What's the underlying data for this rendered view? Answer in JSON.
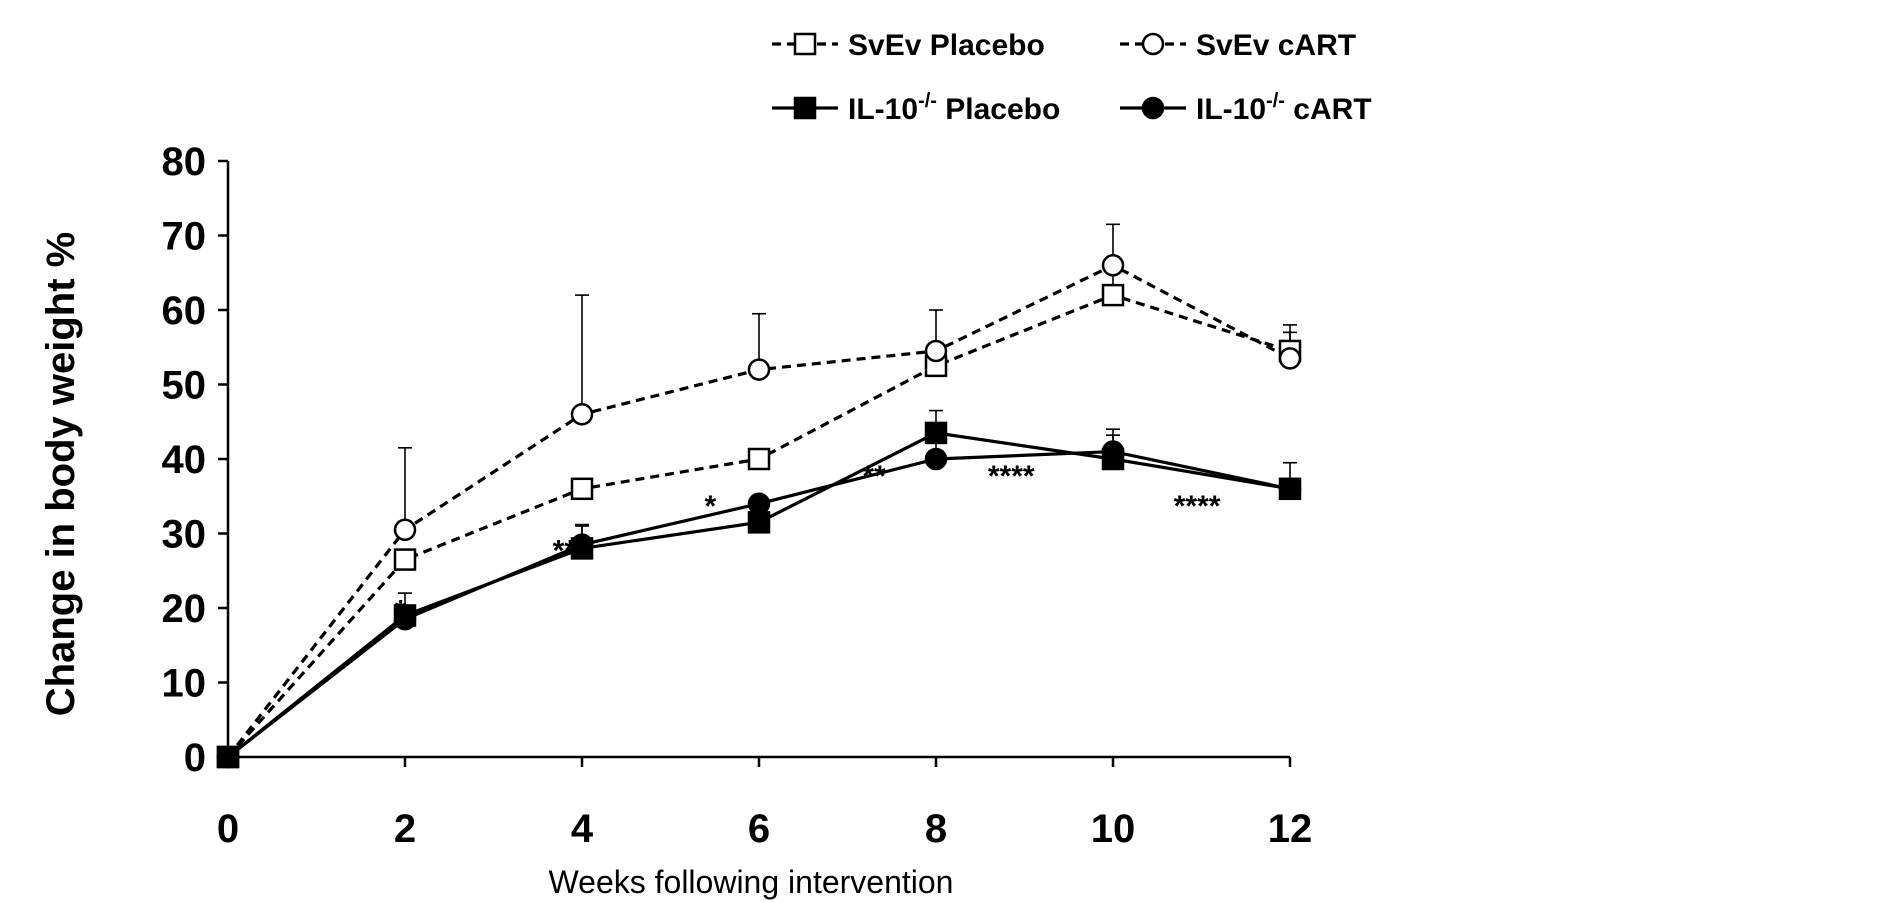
{
  "chart_data": {
    "type": "line",
    "title": "",
    "xlabel": "Weeks following intervention",
    "ylabel": "Change in body weight %",
    "x": [
      0,
      2,
      4,
      6,
      8,
      10,
      12
    ],
    "xlim": [
      0,
      12
    ],
    "ylim": [
      0,
      80
    ],
    "xticks": [
      "0",
      "2",
      "4",
      "6",
      "8",
      "10",
      "12"
    ],
    "yticks": [
      "0",
      "10",
      "20",
      "30",
      "40",
      "50",
      "60",
      "70",
      "80"
    ],
    "grid": false,
    "legend_position": "top",
    "series": [
      {
        "name": "SvEv Placebo",
        "values": [
          0,
          26.5,
          36,
          40,
          52.5,
          62,
          54.5
        ],
        "error": [
          0,
          0,
          0,
          0,
          0,
          4,
          2.5
        ],
        "line": "dashed",
        "marker": "open-square",
        "color": "#000000"
      },
      {
        "name": "SvEv cART",
        "values": [
          0,
          30.5,
          46,
          52,
          54.5,
          66,
          53.5
        ],
        "error": [
          0,
          11,
          16,
          7.5,
          5.5,
          5.5,
          4.5
        ],
        "line": "dashed",
        "marker": "open-circle",
        "color": "#000000"
      },
      {
        "name_main": "IL-10",
        "name_sup": "-/-",
        "name_rest": " Placebo",
        "values": [
          0,
          19,
          28,
          31.5,
          43.5,
          40,
          36
        ],
        "error": [
          0,
          0,
          3.2,
          2,
          3,
          3.2,
          3.5
        ],
        "line": "solid",
        "marker": "filled-square",
        "color": "#000000"
      },
      {
        "name_main": "IL-10",
        "name_sup": "-/-",
        "name_rest": " cART",
        "values": [
          0,
          18.5,
          28.5,
          34,
          40,
          41,
          36
        ],
        "error": [
          0,
          3.5,
          2.5,
          0,
          4,
          3,
          0
        ],
        "line": "solid",
        "marker": "filled-circle",
        "color": "#000000"
      }
    ],
    "annotations": [
      {
        "text": "*",
        "x": 1.95,
        "y": 20.5
      },
      {
        "text": "**",
        "x": 3.8,
        "y": 28.5
      },
      {
        "text": "*",
        "x": 5.45,
        "y": 34.5
      },
      {
        "text": "**",
        "x": 7.3,
        "y": 38.5
      },
      {
        "text": "****",
        "x": 8.85,
        "y": 38.5
      },
      {
        "text": "****",
        "x": 10.95,
        "y": 34.5
      }
    ]
  }
}
